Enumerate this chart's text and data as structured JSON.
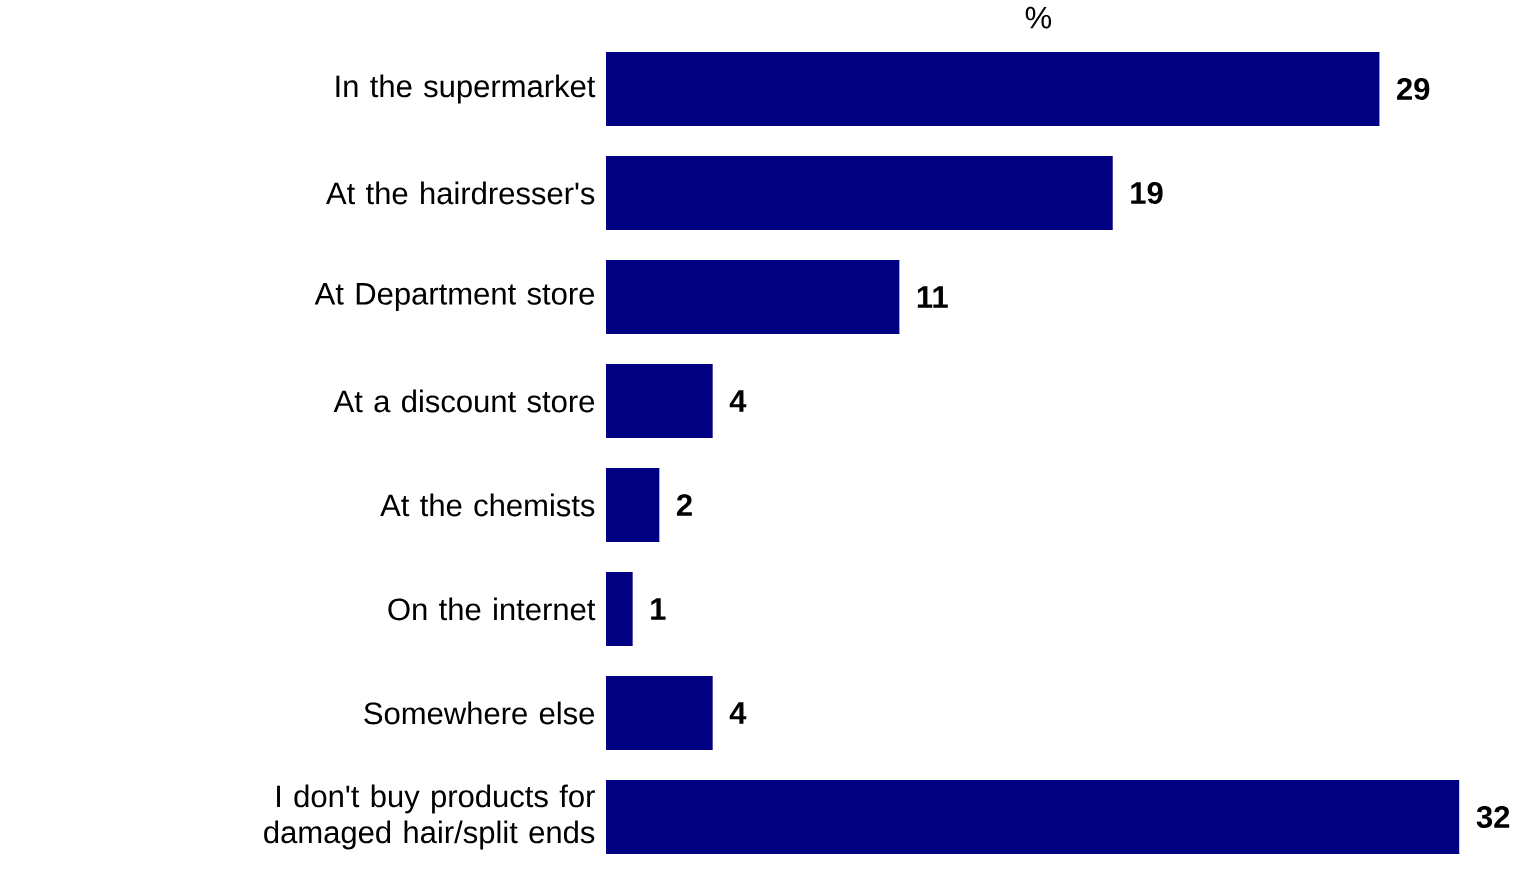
{
  "chart_data": {
    "type": "bar",
    "orientation": "horizontal",
    "xlabel": "%",
    "categories": [
      "In the supermarket",
      "At the hairdresser's",
      "At Department store",
      "At a discount store",
      "At the chemists",
      "On the internet",
      "Somewhere else",
      "I don't buy products for damaged hair/split ends"
    ],
    "values": [
      29,
      19,
      11,
      4,
      2,
      1,
      4,
      32
    ],
    "color": "#000080",
    "data_labels": true,
    "tick_labels": "y"
  }
}
